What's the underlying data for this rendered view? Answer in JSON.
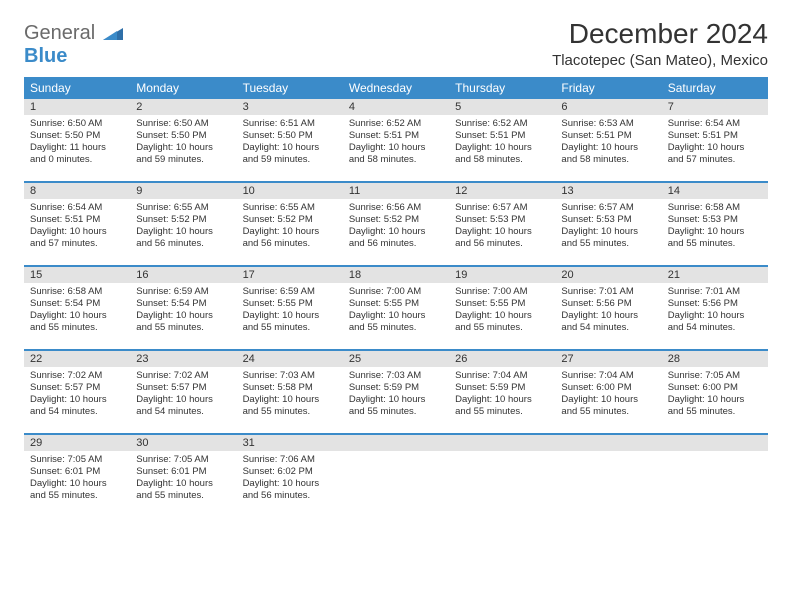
{
  "brand": {
    "part1": "General",
    "part2": "Blue"
  },
  "title": "December 2024",
  "location": "Tlacotepec (San Mateo), Mexico",
  "colors": {
    "header_bg": "#3b8bc9",
    "daynum_bg": "#e3e3e3",
    "rule": "#3b8bc9"
  },
  "day_labels": [
    "Sunday",
    "Monday",
    "Tuesday",
    "Wednesday",
    "Thursday",
    "Friday",
    "Saturday"
  ],
  "weeks": [
    [
      {
        "n": "1",
        "sr": "Sunrise: 6:50 AM",
        "ss": "Sunset: 5:50 PM",
        "dl": "Daylight: 11 hours and 0 minutes."
      },
      {
        "n": "2",
        "sr": "Sunrise: 6:50 AM",
        "ss": "Sunset: 5:50 PM",
        "dl": "Daylight: 10 hours and 59 minutes."
      },
      {
        "n": "3",
        "sr": "Sunrise: 6:51 AM",
        "ss": "Sunset: 5:50 PM",
        "dl": "Daylight: 10 hours and 59 minutes."
      },
      {
        "n": "4",
        "sr": "Sunrise: 6:52 AM",
        "ss": "Sunset: 5:51 PM",
        "dl": "Daylight: 10 hours and 58 minutes."
      },
      {
        "n": "5",
        "sr": "Sunrise: 6:52 AM",
        "ss": "Sunset: 5:51 PM",
        "dl": "Daylight: 10 hours and 58 minutes."
      },
      {
        "n": "6",
        "sr": "Sunrise: 6:53 AM",
        "ss": "Sunset: 5:51 PM",
        "dl": "Daylight: 10 hours and 58 minutes."
      },
      {
        "n": "7",
        "sr": "Sunrise: 6:54 AM",
        "ss": "Sunset: 5:51 PM",
        "dl": "Daylight: 10 hours and 57 minutes."
      }
    ],
    [
      {
        "n": "8",
        "sr": "Sunrise: 6:54 AM",
        "ss": "Sunset: 5:51 PM",
        "dl": "Daylight: 10 hours and 57 minutes."
      },
      {
        "n": "9",
        "sr": "Sunrise: 6:55 AM",
        "ss": "Sunset: 5:52 PM",
        "dl": "Daylight: 10 hours and 56 minutes."
      },
      {
        "n": "10",
        "sr": "Sunrise: 6:55 AM",
        "ss": "Sunset: 5:52 PM",
        "dl": "Daylight: 10 hours and 56 minutes."
      },
      {
        "n": "11",
        "sr": "Sunrise: 6:56 AM",
        "ss": "Sunset: 5:52 PM",
        "dl": "Daylight: 10 hours and 56 minutes."
      },
      {
        "n": "12",
        "sr": "Sunrise: 6:57 AM",
        "ss": "Sunset: 5:53 PM",
        "dl": "Daylight: 10 hours and 56 minutes."
      },
      {
        "n": "13",
        "sr": "Sunrise: 6:57 AM",
        "ss": "Sunset: 5:53 PM",
        "dl": "Daylight: 10 hours and 55 minutes."
      },
      {
        "n": "14",
        "sr": "Sunrise: 6:58 AM",
        "ss": "Sunset: 5:53 PM",
        "dl": "Daylight: 10 hours and 55 minutes."
      }
    ],
    [
      {
        "n": "15",
        "sr": "Sunrise: 6:58 AM",
        "ss": "Sunset: 5:54 PM",
        "dl": "Daylight: 10 hours and 55 minutes."
      },
      {
        "n": "16",
        "sr": "Sunrise: 6:59 AM",
        "ss": "Sunset: 5:54 PM",
        "dl": "Daylight: 10 hours and 55 minutes."
      },
      {
        "n": "17",
        "sr": "Sunrise: 6:59 AM",
        "ss": "Sunset: 5:55 PM",
        "dl": "Daylight: 10 hours and 55 minutes."
      },
      {
        "n": "18",
        "sr": "Sunrise: 7:00 AM",
        "ss": "Sunset: 5:55 PM",
        "dl": "Daylight: 10 hours and 55 minutes."
      },
      {
        "n": "19",
        "sr": "Sunrise: 7:00 AM",
        "ss": "Sunset: 5:55 PM",
        "dl": "Daylight: 10 hours and 55 minutes."
      },
      {
        "n": "20",
        "sr": "Sunrise: 7:01 AM",
        "ss": "Sunset: 5:56 PM",
        "dl": "Daylight: 10 hours and 54 minutes."
      },
      {
        "n": "21",
        "sr": "Sunrise: 7:01 AM",
        "ss": "Sunset: 5:56 PM",
        "dl": "Daylight: 10 hours and 54 minutes."
      }
    ],
    [
      {
        "n": "22",
        "sr": "Sunrise: 7:02 AM",
        "ss": "Sunset: 5:57 PM",
        "dl": "Daylight: 10 hours and 54 minutes."
      },
      {
        "n": "23",
        "sr": "Sunrise: 7:02 AM",
        "ss": "Sunset: 5:57 PM",
        "dl": "Daylight: 10 hours and 54 minutes."
      },
      {
        "n": "24",
        "sr": "Sunrise: 7:03 AM",
        "ss": "Sunset: 5:58 PM",
        "dl": "Daylight: 10 hours and 55 minutes."
      },
      {
        "n": "25",
        "sr": "Sunrise: 7:03 AM",
        "ss": "Sunset: 5:59 PM",
        "dl": "Daylight: 10 hours and 55 minutes."
      },
      {
        "n": "26",
        "sr": "Sunrise: 7:04 AM",
        "ss": "Sunset: 5:59 PM",
        "dl": "Daylight: 10 hours and 55 minutes."
      },
      {
        "n": "27",
        "sr": "Sunrise: 7:04 AM",
        "ss": "Sunset: 6:00 PM",
        "dl": "Daylight: 10 hours and 55 minutes."
      },
      {
        "n": "28",
        "sr": "Sunrise: 7:05 AM",
        "ss": "Sunset: 6:00 PM",
        "dl": "Daylight: 10 hours and 55 minutes."
      }
    ],
    [
      {
        "n": "29",
        "sr": "Sunrise: 7:05 AM",
        "ss": "Sunset: 6:01 PM",
        "dl": "Daylight: 10 hours and 55 minutes."
      },
      {
        "n": "30",
        "sr": "Sunrise: 7:05 AM",
        "ss": "Sunset: 6:01 PM",
        "dl": "Daylight: 10 hours and 55 minutes."
      },
      {
        "n": "31",
        "sr": "Sunrise: 7:06 AM",
        "ss": "Sunset: 6:02 PM",
        "dl": "Daylight: 10 hours and 56 minutes."
      },
      null,
      null,
      null,
      null
    ]
  ]
}
